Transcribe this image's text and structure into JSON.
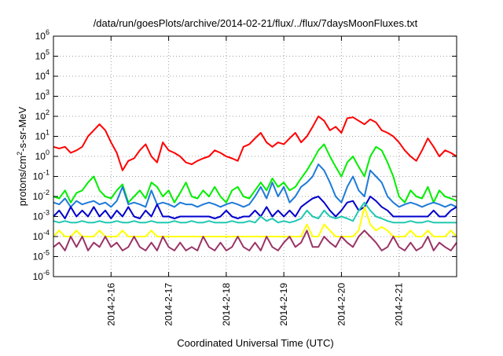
{
  "chart_data": {
    "type": "line",
    "title": "/data/run/goesPlots/archive/2014-02-21/flux/../flux/7daysMoonFluxes.txt",
    "xlabel": "Coordinated Universal Time (UTC)",
    "ylabel": {
      "prefix": "protons/cm",
      "sup": "2",
      "suffix": "-s-sr-MeV"
    },
    "y_scale": "log",
    "ylim_exp": [
      -6,
      6
    ],
    "y_ticks": [
      {
        "base": "10",
        "exp": "6"
      },
      {
        "base": "10",
        "exp": "5"
      },
      {
        "base": "10",
        "exp": "4"
      },
      {
        "base": "10",
        "exp": "3"
      },
      {
        "base": "10",
        "exp": "2"
      },
      {
        "base": "10",
        "exp": "1"
      },
      {
        "base": "10",
        "exp": "0"
      },
      {
        "base": "10",
        "exp": "-1"
      },
      {
        "base": "10",
        "exp": "-2"
      },
      {
        "base": "10",
        "exp": "-3"
      },
      {
        "base": "10",
        "exp": "-4"
      },
      {
        "base": "10",
        "exp": "-5"
      },
      {
        "base": "10",
        "exp": "-6"
      }
    ],
    "x_range_days": [
      15.0,
      22.0
    ],
    "x_ticks": [
      {
        "label": "2014-2-16",
        "day": 16
      },
      {
        "label": "2014-2-17",
        "day": 17
      },
      {
        "label": "2014-2-18",
        "day": 18
      },
      {
        "label": "2014-2-19",
        "day": 19
      },
      {
        "label": "2014-2-20",
        "day": 20
      },
      {
        "label": "2014-2-21",
        "day": 21
      }
    ],
    "grid": true,
    "legend": "none",
    "series": [
      {
        "color": "#ff0000",
        "x": [
          15.0,
          15.1,
          15.2,
          15.3,
          15.4,
          15.5,
          15.6,
          15.7,
          15.8,
          15.9,
          16.0,
          16.1,
          16.2,
          16.3,
          16.4,
          16.5,
          16.6,
          16.7,
          16.8,
          16.9,
          17.0,
          17.1,
          17.2,
          17.3,
          17.4,
          17.5,
          17.6,
          17.7,
          17.8,
          17.9,
          18.0,
          18.1,
          18.2,
          18.3,
          18.4,
          18.5,
          18.6,
          18.7,
          18.8,
          18.9,
          19.0,
          19.1,
          19.2,
          19.3,
          19.4,
          19.5,
          19.6,
          19.7,
          19.8,
          19.9,
          20.0,
          20.1,
          20.2,
          20.3,
          20.4,
          20.5,
          20.6,
          20.7,
          20.8,
          20.9,
          21.0,
          21.1,
          21.2,
          21.3,
          21.4,
          21.5,
          21.6,
          21.7,
          21.8,
          21.9,
          22.0
        ],
        "y": [
          3,
          2.5,
          3,
          1.5,
          2,
          3,
          10,
          20,
          40,
          20,
          5,
          1.5,
          0.2,
          0.6,
          0.8,
          2,
          4,
          1,
          0.5,
          5,
          2,
          1.5,
          1,
          0.5,
          0.4,
          0.6,
          0.8,
          1,
          2,
          1.5,
          1,
          0.8,
          0.6,
          3,
          4,
          8,
          15,
          5,
          3,
          5,
          4,
          8,
          15,
          5,
          10,
          30,
          100,
          60,
          20,
          30,
          15,
          80,
          90,
          60,
          40,
          70,
          50,
          20,
          15,
          10,
          5,
          2,
          1,
          0.6,
          2,
          8,
          3,
          1,
          2,
          1.5,
          1
        ]
      },
      {
        "color": "#00ee00",
        "x": [
          15.0,
          15.1,
          15.2,
          15.3,
          15.4,
          15.5,
          15.6,
          15.7,
          15.8,
          15.9,
          16.0,
          16.1,
          16.2,
          16.3,
          16.4,
          16.5,
          16.6,
          16.7,
          16.8,
          16.9,
          17.0,
          17.1,
          17.2,
          17.3,
          17.4,
          17.5,
          17.6,
          17.7,
          17.8,
          17.9,
          18.0,
          18.1,
          18.2,
          18.3,
          18.4,
          18.5,
          18.6,
          18.7,
          18.8,
          18.9,
          19.0,
          19.1,
          19.2,
          19.3,
          19.4,
          19.5,
          19.6,
          19.7,
          19.8,
          19.9,
          20.0,
          20.1,
          20.2,
          20.3,
          20.4,
          20.5,
          20.6,
          20.7,
          20.8,
          20.9,
          21.0,
          21.1,
          21.2,
          21.3,
          21.4,
          21.5,
          21.6,
          21.7,
          21.8,
          21.9,
          22.0
        ],
        "y": [
          0.01,
          0.008,
          0.02,
          0.005,
          0.015,
          0.02,
          0.05,
          0.1,
          0.02,
          0.01,
          0.008,
          0.02,
          0.04,
          0.005,
          0.01,
          0.02,
          0.008,
          0.05,
          0.03,
          0.01,
          0.02,
          0.005,
          0.015,
          0.05,
          0.01,
          0.008,
          0.02,
          0.01,
          0.03,
          0.01,
          0.005,
          0.02,
          0.03,
          0.01,
          0.008,
          0.02,
          0.05,
          0.02,
          0.08,
          0.03,
          0.05,
          0.02,
          0.03,
          0.08,
          0.2,
          0.6,
          2,
          4,
          1,
          0.3,
          0.1,
          0.5,
          1,
          0.3,
          0.1,
          1,
          3,
          2,
          0.5,
          0.1,
          0.01,
          0.005,
          0.02,
          0.01,
          0.008,
          0.03,
          0.005,
          0.02,
          0.01,
          0.008,
          0.006
        ]
      },
      {
        "color": "#1e7bd8",
        "x": [
          15.0,
          15.1,
          15.2,
          15.3,
          15.4,
          15.5,
          15.6,
          15.7,
          15.8,
          15.9,
          16.0,
          16.1,
          16.2,
          16.3,
          16.4,
          16.5,
          16.6,
          16.7,
          16.8,
          16.9,
          17.0,
          17.1,
          17.2,
          17.3,
          17.4,
          17.5,
          17.6,
          17.7,
          17.8,
          17.9,
          18.0,
          18.1,
          18.2,
          18.3,
          18.4,
          18.5,
          18.6,
          18.7,
          18.8,
          18.9,
          19.0,
          19.1,
          19.2,
          19.3,
          19.4,
          19.5,
          19.6,
          19.7,
          19.8,
          19.9,
          20.0,
          20.1,
          20.2,
          20.3,
          20.4,
          20.5,
          20.6,
          20.7,
          20.8,
          20.9,
          21.0,
          21.1,
          21.2,
          21.3,
          21.4,
          21.5,
          21.6,
          21.7,
          21.8,
          21.9,
          22.0
        ],
        "y": [
          0.005,
          0.004,
          0.008,
          0.003,
          0.006,
          0.004,
          0.005,
          0.006,
          0.004,
          0.005,
          0.003,
          0.006,
          0.03,
          0.004,
          0.005,
          0.004,
          0.003,
          0.02,
          0.004,
          0.005,
          0.004,
          0.003,
          0.005,
          0.004,
          0.004,
          0.003,
          0.004,
          0.005,
          0.004,
          0.003,
          0.004,
          0.005,
          0.004,
          0.003,
          0.004,
          0.01,
          0.03,
          0.008,
          0.05,
          0.01,
          0.03,
          0.005,
          0.01,
          0.03,
          0.05,
          0.1,
          0.4,
          0.2,
          0.05,
          0.01,
          0.005,
          0.03,
          0.1,
          0.02,
          0.01,
          0.2,
          0.1,
          0.05,
          0.01,
          0.005,
          0.003,
          0.004,
          0.005,
          0.004,
          0.003,
          0.004,
          0.005,
          0.004,
          0.003,
          0.004,
          0.003
        ]
      },
      {
        "color": "#0000cc",
        "x": [
          15.0,
          15.1,
          15.2,
          15.3,
          15.4,
          15.5,
          15.6,
          15.7,
          15.8,
          15.9,
          16.0,
          16.1,
          16.2,
          16.3,
          16.4,
          16.5,
          16.6,
          16.7,
          16.8,
          16.9,
          17.0,
          17.1,
          17.2,
          17.3,
          17.4,
          17.5,
          17.6,
          17.7,
          17.8,
          17.9,
          18.0,
          18.1,
          18.2,
          18.3,
          18.4,
          18.5,
          18.6,
          18.7,
          18.8,
          18.9,
          19.0,
          19.1,
          19.2,
          19.3,
          19.4,
          19.5,
          19.6,
          19.7,
          19.8,
          19.9,
          20.0,
          20.1,
          20.2,
          20.3,
          20.4,
          20.5,
          20.6,
          20.7,
          20.8,
          20.9,
          21.0,
          21.1,
          21.2,
          21.3,
          21.4,
          21.5,
          21.6,
          21.7,
          21.8,
          21.9,
          22.0
        ],
        "y": [
          0.001,
          0.002,
          0.0008,
          0.003,
          0.001,
          0.002,
          0.001,
          0.003,
          0.001,
          0.002,
          0.0008,
          0.002,
          0.001,
          0.003,
          0.001,
          0.0008,
          0.002,
          0.001,
          0.004,
          0.001,
          0.001,
          0.0008,
          0.001,
          0.001,
          0.001,
          0.001,
          0.001,
          0.001,
          0.0008,
          0.001,
          0.002,
          0.001,
          0.0008,
          0.001,
          0.001,
          0.002,
          0.001,
          0.003,
          0.001,
          0.002,
          0.001,
          0.002,
          0.001,
          0.003,
          0.005,
          0.008,
          0.01,
          0.005,
          0.002,
          0.001,
          0.002,
          0.005,
          0.006,
          0.002,
          0.003,
          0.01,
          0.006,
          0.003,
          0.002,
          0.001,
          0.001,
          0.001,
          0.001,
          0.001,
          0.001,
          0.001,
          0.002,
          0.001,
          0.001,
          0.002,
          0.003
        ]
      },
      {
        "color": "#20c8b0",
        "x": [
          15.0,
          15.1,
          15.2,
          15.3,
          15.4,
          15.5,
          15.6,
          15.7,
          15.8,
          15.9,
          16.0,
          16.1,
          16.2,
          16.3,
          16.4,
          16.5,
          16.6,
          16.7,
          16.8,
          16.9,
          17.0,
          17.1,
          17.2,
          17.3,
          17.4,
          17.5,
          17.6,
          17.7,
          17.8,
          17.9,
          18.0,
          18.1,
          18.2,
          18.3,
          18.4,
          18.5,
          18.6,
          18.7,
          18.8,
          18.9,
          19.0,
          19.1,
          19.2,
          19.3,
          19.4,
          19.5,
          19.6,
          19.7,
          19.8,
          19.9,
          20.0,
          20.1,
          20.2,
          20.3,
          20.4,
          20.5,
          20.6,
          20.7,
          20.8,
          20.9,
          21.0,
          21.1,
          21.2,
          21.3,
          21.4,
          21.5,
          21.6,
          21.7,
          21.8,
          21.9,
          22.0
        ],
        "y": [
          0.0006,
          0.0005,
          0.0006,
          0.0005,
          0.0005,
          0.0006,
          0.0005,
          0.0005,
          0.0006,
          0.0005,
          0.0005,
          0.0006,
          0.0005,
          0.0005,
          0.0006,
          0.0005,
          0.0005,
          0.0006,
          0.0005,
          0.0005,
          0.0005,
          0.0006,
          0.0005,
          0.0005,
          0.0006,
          0.0005,
          0.0005,
          0.0006,
          0.0005,
          0.0005,
          0.0005,
          0.0006,
          0.0005,
          0.0005,
          0.0006,
          0.0005,
          0.001,
          0.0006,
          0.0008,
          0.0005,
          0.0006,
          0.0005,
          0.0006,
          0.0008,
          0.002,
          0.001,
          0.0008,
          0.002,
          0.001,
          0.0008,
          0.001,
          0.0008,
          0.0006,
          0.002,
          0.005,
          0.002,
          0.001,
          0.0008,
          0.0006,
          0.0005,
          0.0005,
          0.0005,
          0.0006,
          0.0005,
          0.0005,
          0.0006,
          0.0005,
          0.0005,
          0.0005,
          0.0005,
          0.0005
        ]
      },
      {
        "color": "#ffff00",
        "x": [
          15.0,
          15.1,
          15.2,
          15.3,
          15.4,
          15.5,
          15.6,
          15.7,
          15.8,
          15.9,
          16.0,
          16.1,
          16.2,
          16.3,
          16.4,
          16.5,
          16.6,
          16.7,
          16.8,
          16.9,
          17.0,
          17.1,
          17.2,
          17.3,
          17.4,
          17.5,
          17.6,
          17.7,
          17.8,
          17.9,
          18.0,
          18.1,
          18.2,
          18.3,
          18.4,
          18.5,
          18.6,
          18.7,
          18.8,
          18.9,
          19.0,
          19.1,
          19.2,
          19.3,
          19.4,
          19.5,
          19.6,
          19.7,
          19.8,
          19.9,
          20.0,
          20.1,
          20.2,
          20.3,
          20.4,
          20.5,
          20.6,
          20.7,
          20.8,
          20.9,
          21.0,
          21.1,
          21.2,
          21.3,
          21.4,
          21.5,
          21.6,
          21.7,
          21.8,
          21.9,
          22.0
        ],
        "y": [
          0.0001,
          0.0002,
          0.0001,
          0.0001,
          0.0002,
          0.0001,
          0.0001,
          0.0001,
          0.0002,
          0.0001,
          0.0001,
          0.0001,
          0.0002,
          0.0001,
          0.0001,
          0.0001,
          0.0001,
          0.0002,
          0.0001,
          0.0001,
          0.0001,
          0.0001,
          0.0001,
          0.0001,
          0.0001,
          0.0001,
          0.0001,
          0.0001,
          0.0001,
          0.0001,
          0.0001,
          0.0001,
          0.0001,
          0.0001,
          0.0001,
          0.0001,
          0.0001,
          0.0001,
          0.0001,
          0.0001,
          0.0001,
          0.0001,
          0.0001,
          0.0001,
          0.0004,
          0.0001,
          0.0001,
          0.0004,
          0.0002,
          0.0001,
          0.0001,
          0.0001,
          0.0001,
          0.0002,
          0.003,
          0.0004,
          0.0002,
          0.0003,
          0.0002,
          0.0001,
          0.0001,
          0.0001,
          0.0002,
          0.0001,
          0.0001,
          0.0002,
          0.0001,
          0.0001,
          0.0001,
          0.0002,
          0.0001
        ]
      },
      {
        "color": "#993366",
        "x": [
          15.0,
          15.1,
          15.2,
          15.3,
          15.4,
          15.5,
          15.6,
          15.7,
          15.8,
          15.9,
          16.0,
          16.1,
          16.2,
          16.3,
          16.4,
          16.5,
          16.6,
          16.7,
          16.8,
          16.9,
          17.0,
          17.1,
          17.2,
          17.3,
          17.4,
          17.5,
          17.6,
          17.7,
          17.8,
          17.9,
          18.0,
          18.1,
          18.2,
          18.3,
          18.4,
          18.5,
          18.6,
          18.7,
          18.8,
          18.9,
          19.0,
          19.1,
          19.2,
          19.3,
          19.4,
          19.5,
          19.6,
          19.7,
          19.8,
          19.9,
          20.0,
          20.1,
          20.2,
          20.3,
          20.4,
          20.5,
          20.6,
          20.7,
          20.8,
          20.9,
          21.0,
          21.1,
          21.2,
          21.3,
          21.4,
          21.5,
          21.6,
          21.7,
          21.8,
          21.9,
          22.0
        ],
        "y": [
          3e-05,
          5e-05,
          2e-05,
          0.0001,
          3e-05,
          0.0001,
          2e-05,
          5e-05,
          3e-05,
          0.0001,
          3e-05,
          5e-05,
          2e-05,
          3e-05,
          0.0001,
          3e-05,
          2e-05,
          5e-05,
          2e-05,
          0.0001,
          3e-05,
          2e-05,
          5e-05,
          2e-05,
          3e-05,
          2e-05,
          0.0001,
          3e-05,
          2e-05,
          5e-05,
          2e-05,
          3e-05,
          0.0001,
          3e-05,
          2e-05,
          5e-05,
          2e-05,
          0.0001,
          3e-05,
          2e-05,
          5e-05,
          0.0001,
          3e-05,
          5e-05,
          0.0002,
          3e-05,
          3e-05,
          0.0001,
          5e-05,
          3e-05,
          0.0001,
          5e-05,
          3e-05,
          0.0001,
          0.0002,
          0.0001,
          5e-05,
          2e-05,
          3e-05,
          0.0001,
          3e-05,
          2e-05,
          5e-05,
          2e-05,
          3e-05,
          0.0001,
          2e-05,
          5e-05,
          3e-05,
          2e-05,
          5e-05
        ]
      }
    ]
  }
}
